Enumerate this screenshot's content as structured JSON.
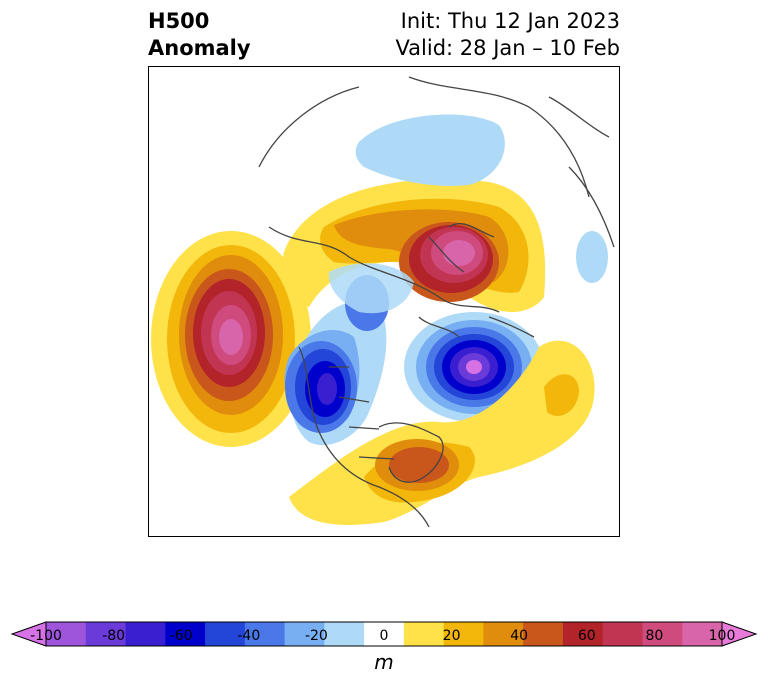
{
  "title": {
    "line1": "H500",
    "line2": "Anomaly",
    "init": "Init: Thu 12 Jan 2023",
    "valid": "Valid: 28 Jan – 10 Feb"
  },
  "colorbar": {
    "ticks": [
      "-100",
      "-80",
      "-60",
      "-40",
      "-20",
      "0",
      "20",
      "40",
      "60",
      "80",
      "100"
    ],
    "unit": "m",
    "colors": [
      "#d672e6",
      "#9e55db",
      "#6a3bd9",
      "#3a1fd0",
      "#0000cc",
      "#2345d8",
      "#4a78e8",
      "#78aef2",
      "#aedaf8",
      "#ffffff",
      "#ffe149",
      "#f3b60a",
      "#e08c0c",
      "#c9561a",
      "#b2232a",
      "#c23552",
      "#cf4a7d",
      "#d865a9",
      "#e87bd9"
    ]
  },
  "map": {
    "anomalies": [
      {
        "name": "ridge-north-pacific",
        "sign": "positive",
        "peak_m": 100
      },
      {
        "name": "ridge-siberia",
        "sign": "positive",
        "peak_m": 100
      },
      {
        "name": "ridge-eastern-us",
        "sign": "positive",
        "peak_m": 50
      },
      {
        "name": "trough-western-canada",
        "sign": "negative",
        "peak_m": -70
      },
      {
        "name": "trough-north-atlantic",
        "sign": "negative",
        "peak_m": -90
      },
      {
        "name": "trough-arctic-russia",
        "sign": "negative",
        "peak_m": -20
      }
    ]
  }
}
